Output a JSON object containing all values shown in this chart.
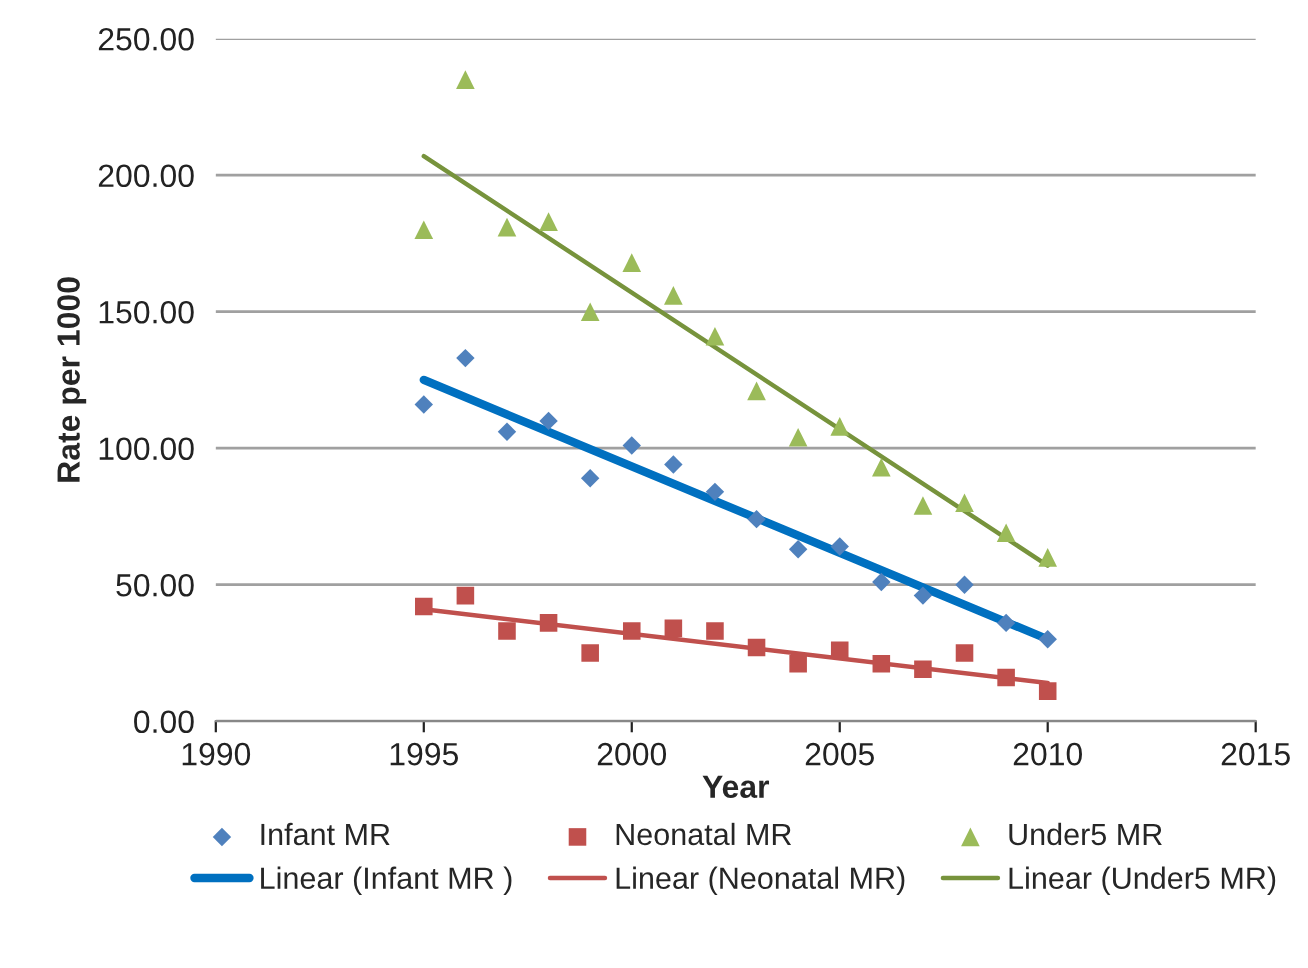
{
  "chart_data": {
    "type": "scatter",
    "xlabel": "Year",
    "ylabel": "Rate per 1000",
    "xlim": [
      1990,
      2015
    ],
    "xticks": [
      1990,
      1995,
      2000,
      2005,
      2010,
      2015
    ],
    "ylim": [
      0,
      250
    ],
    "yticks": [
      {
        "value": 0,
        "label": "0.00"
      },
      {
        "value": 50,
        "label": "50.00"
      },
      {
        "value": 100,
        "label": "100.00"
      },
      {
        "value": 150,
        "label": "150.00"
      },
      {
        "value": 200,
        "label": "200.00"
      },
      {
        "value": 250,
        "label": "250.00"
      }
    ],
    "grid": "y",
    "legend": "bottom",
    "series": [
      {
        "name": "Infant MR",
        "color": "#4f81bd",
        "marker": "diamond",
        "x": [
          1995,
          1996,
          1997,
          1998,
          1999,
          2000,
          2001,
          2002,
          2003,
          2004,
          2005,
          2006,
          2007,
          2008,
          2009,
          2010
        ],
        "values": [
          116,
          133,
          106,
          110,
          89,
          101,
          94,
          84,
          74,
          63,
          64,
          51,
          46,
          50,
          36,
          30
        ]
      },
      {
        "name": "Neonatal MR",
        "color": "#c0504d",
        "marker": "square",
        "x": [
          1995,
          1996,
          1997,
          1998,
          1999,
          2000,
          2001,
          2002,
          2003,
          2004,
          2005,
          2006,
          2007,
          2008,
          2009,
          2010
        ],
        "values": [
          42,
          46,
          33,
          36,
          25,
          33,
          34,
          33,
          27,
          21,
          26,
          21,
          19,
          25,
          16,
          11
        ]
      },
      {
        "name": "Under5 MR",
        "color": "#9bbb59",
        "marker": "triangle",
        "x": [
          1995,
          1996,
          1997,
          1998,
          1999,
          2000,
          2001,
          2002,
          2003,
          2004,
          2005,
          2006,
          2007,
          2008,
          2009,
          2010
        ],
        "values": [
          180,
          235,
          181,
          183,
          150,
          168,
          156,
          141,
          121,
          104,
          108,
          93,
          79,
          80,
          69,
          60
        ]
      },
      {
        "type": "line",
        "name": "Linear (Infant MR )",
        "color": "#0070c0",
        "marker": "none",
        "x": [
          1995,
          2010
        ],
        "values": [
          125,
          30
        ]
      },
      {
        "type": "line",
        "name": "Linear (Neonatal MR)",
        "color": "#c0504d",
        "marker": "none",
        "x": [
          1995,
          2010
        ],
        "values": [
          41,
          14
        ]
      },
      {
        "type": "line",
        "name": "Linear (Under5 MR)",
        "color": "#77933c",
        "marker": "none",
        "x": [
          1995,
          2010
        ],
        "values": [
          207,
          57
        ]
      }
    ]
  }
}
